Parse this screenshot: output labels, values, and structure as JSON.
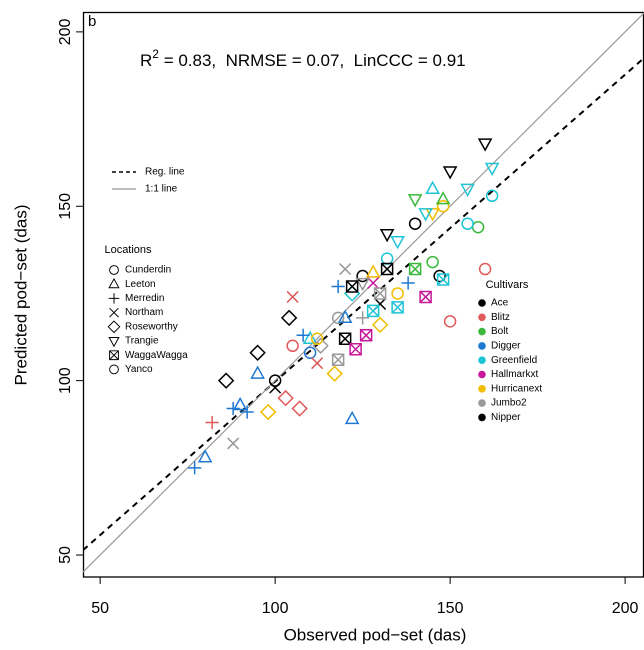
{
  "chart_data": {
    "type": "scatter",
    "panel_label": "b",
    "annotation": {
      "text": "R",
      "sup": "2",
      "rest": " = 0.83,  NRMSE = 0.07,  LinCCC = 0.91"
    },
    "xlabel": "Observed pod−set (das)",
    "ylabel": "Predicted pod−set (das)",
    "xlim": [
      45.1,
      205.4
    ],
    "ylim": [
      43.7,
      205.7
    ],
    "xticks": [
      50,
      100,
      150,
      200
    ],
    "yticks": [
      50,
      100,
      150,
      200
    ],
    "lines": [
      {
        "name": "Reg. line",
        "style": "dashed",
        "color": "#000000",
        "x": [
          45.1,
          205.4
        ],
        "values": [
          51.4,
          192.5
        ]
      },
      {
        "name": "1:1 line",
        "style": "solid",
        "color": "#999999",
        "x": [
          45.1,
          205.4
        ],
        "values": [
          45.1,
          205.4
        ]
      }
    ],
    "locations_title": "Locations",
    "cultivars_title": "Cultivars",
    "cultivars": [
      {
        "name": "Ace",
        "color": "#000000"
      },
      {
        "name": "Blitz",
        "color": "#e05a5a"
      },
      {
        "name": "Bolt",
        "color": "#3cb83c"
      },
      {
        "name": "Digger",
        "color": "#1f78d1"
      },
      {
        "name": "Greenfield",
        "color": "#1cc4d6"
      },
      {
        "name": "Hallmarkxt",
        "color": "#c8189a"
      },
      {
        "name": "Hurricanext",
        "color": "#f2bd00"
      },
      {
        "name": "Jumbo2",
        "color": "#999999"
      },
      {
        "name": "Nipper",
        "color": "#000000"
      }
    ],
    "series": [
      {
        "name": "Cunderdin",
        "marker": "circle",
        "x": [
          100,
          105,
          118,
          125,
          132,
          147,
          150,
          160,
          148,
          140,
          110
        ],
        "values": [
          100,
          110,
          118,
          130,
          135,
          130,
          117,
          132,
          150,
          145,
          108
        ],
        "cultivar": [
          "Ace",
          "Blitz",
          "Jumbo2",
          "Ace",
          "Greenfield",
          "Ace",
          "Blitz",
          "Blitz",
          "Hurricanext",
          "Ace",
          "Digger"
        ]
      },
      {
        "name": "Leeton",
        "marker": "triangle",
        "x": [
          95,
          90,
          80,
          122,
          145,
          110,
          128,
          148,
          120
        ],
        "values": [
          102,
          93,
          78,
          89,
          155,
          112,
          131,
          152,
          118
        ],
        "cultivar": [
          "Digger",
          "Digger",
          "Digger",
          "Digger",
          "Greenfield",
          "Greenfield",
          "Hurricanext",
          "Bolt",
          "Digger"
        ]
      },
      {
        "name": "Merredin",
        "marker": "plus",
        "x": [
          77,
          88,
          118,
          125,
          108,
          82,
          138,
          92
        ],
        "values": [
          75,
          92,
          127,
          118,
          113,
          88,
          128,
          91
        ],
        "cultivar": [
          "Digger",
          "Digger",
          "Digger",
          "Jumbo2",
          "Digger",
          "Blitz",
          "Digger",
          "Digger"
        ]
      },
      {
        "name": "Northam",
        "marker": "cross",
        "x": [
          88,
          105,
          120,
          130,
          112,
          100,
          128
        ],
        "values": [
          82,
          124,
          132,
          122,
          105,
          98,
          128
        ],
        "cultivar": [
          "Jumbo2",
          "Blitz",
          "Jumbo2",
          "Ace",
          "Blitz",
          "Ace",
          "Hallmarkxt"
        ]
      },
      {
        "name": "Roseworthy",
        "marker": "diamond",
        "x": [
          86,
          95,
          103,
          107,
          113,
          98,
          104,
          130,
          122,
          117
        ],
        "values": [
          100,
          108,
          95,
          92,
          110,
          91,
          118,
          116,
          125,
          102
        ],
        "cultivar": [
          "Ace",
          "Ace",
          "Blitz",
          "Blitz",
          "Jumbo2",
          "Hurricanext",
          "Ace",
          "Hurricanext",
          "Greenfield",
          "Hurricanext"
        ]
      },
      {
        "name": "Trangie",
        "marker": "down",
        "x": [
          160,
          150,
          155,
          145,
          143,
          132,
          140,
          162,
          125,
          135
        ],
        "values": [
          168,
          160,
          155,
          148,
          148,
          142,
          152,
          161,
          128,
          140
        ],
        "cultivar": [
          "Ace",
          "Ace",
          "Greenfield",
          "Hurricanext",
          "Greenfield",
          "Ace",
          "Bolt",
          "Greenfield",
          "Jumbo2",
          "Greenfield"
        ]
      },
      {
        "name": "WaggaWagga",
        "marker": "boxx",
        "x": [
          120,
          122,
          132,
          118,
          128,
          126,
          135,
          143,
          148,
          140,
          130,
          123
        ],
        "values": [
          112,
          127,
          132,
          106,
          120,
          113,
          121,
          124,
          129,
          132,
          125,
          109
        ],
        "cultivar": [
          "Ace",
          "Ace",
          "Ace",
          "Jumbo2",
          "Greenfield",
          "Hallmarkxt",
          "Greenfield",
          "Hallmarkxt",
          "Greenfield",
          "Bolt",
          "Jumbo2",
          "Hallmarkxt"
        ]
      },
      {
        "name": "Yanco",
        "marker": "circle",
        "x": [
          158,
          155,
          162,
          145,
          135,
          112
        ],
        "values": [
          144,
          145,
          153,
          134,
          125,
          112
        ],
        "cultivar": [
          "Bolt",
          "Greenfield",
          "Greenfield",
          "Bolt",
          "Hurricanext",
          "Hurricanext"
        ]
      }
    ]
  }
}
